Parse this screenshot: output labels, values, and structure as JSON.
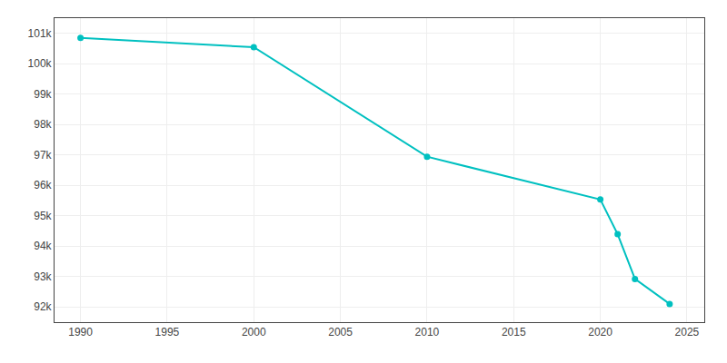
{
  "chart_data": {
    "type": "line",
    "x": [
      1990,
      2000,
      2010,
      2020,
      2021,
      2022,
      2024
    ],
    "values": [
      100850,
      100545,
      96942,
      95535,
      94394,
      92921,
      92099
    ],
    "color": "#00c0c0",
    "marker": "circle",
    "xlim": [
      1988.5,
      2026
    ],
    "ylim": [
      91500,
      101500
    ],
    "xticks": [
      1990,
      1995,
      2000,
      2005,
      2010,
      2015,
      2020,
      2025
    ],
    "yticks": [
      {
        "value": 92000,
        "label": "92k"
      },
      {
        "value": 93000,
        "label": "93k"
      },
      {
        "value": 94000,
        "label": "94k"
      },
      {
        "value": 95000,
        "label": "95k"
      },
      {
        "value": 96000,
        "label": "96k"
      },
      {
        "value": 97000,
        "label": "97k"
      },
      {
        "value": 98000,
        "label": "98k"
      },
      {
        "value": 99000,
        "label": "99k"
      },
      {
        "value": 100000,
        "label": "100k"
      },
      {
        "value": 101000,
        "label": "101k"
      }
    ],
    "grid": true
  }
}
